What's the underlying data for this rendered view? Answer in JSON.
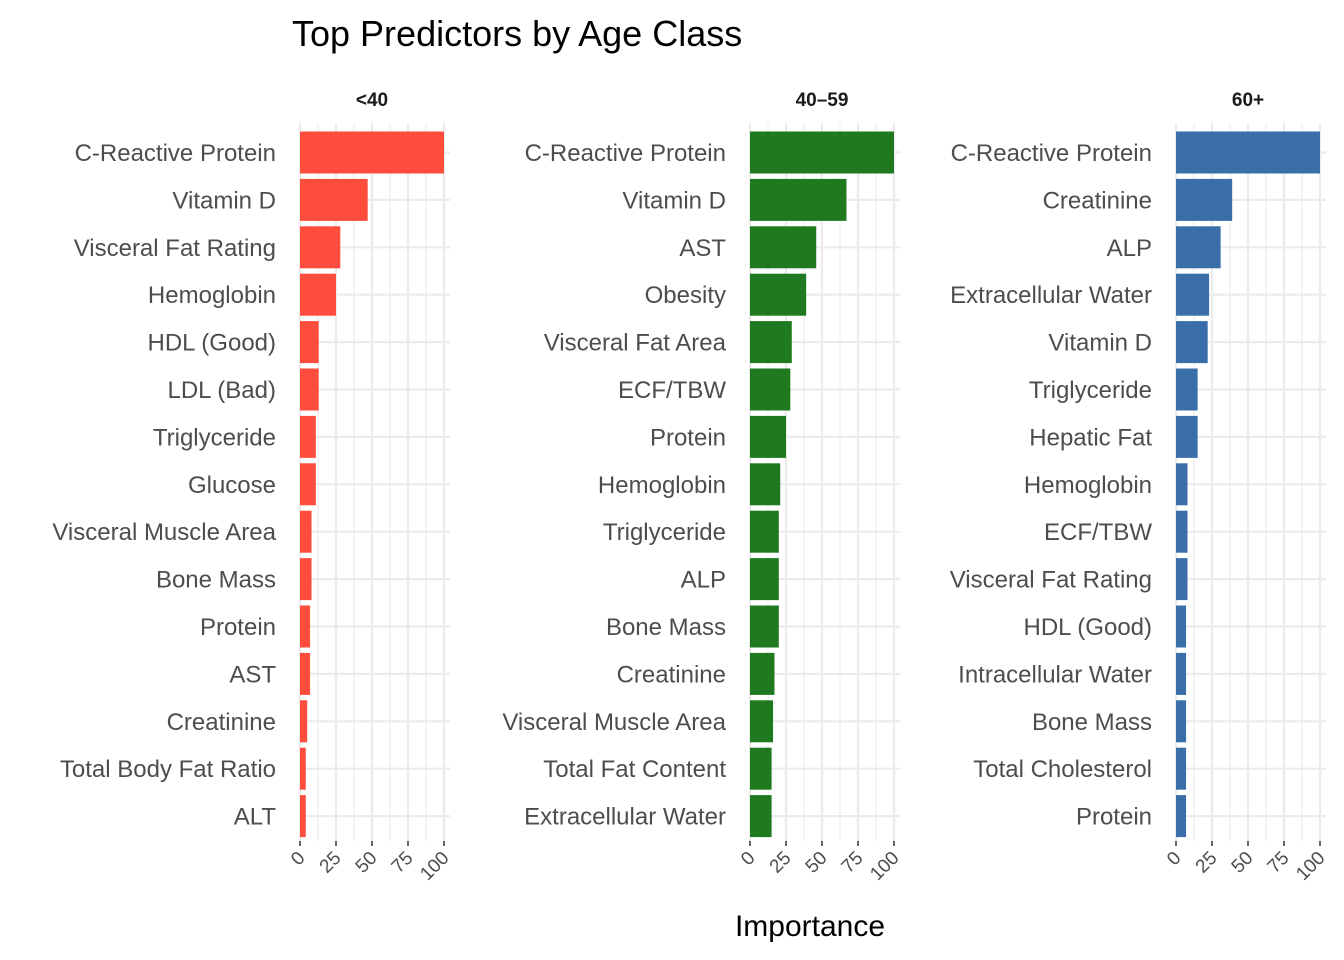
{
  "chart_data": {
    "type": "bar",
    "orientation": "horizontal",
    "title": "Top Predictors by Age Class",
    "xlabel": "Importance",
    "ylabel": "",
    "xlim": [
      0,
      100
    ],
    "xticks": [
      "0",
      "25",
      "50",
      "75",
      "100"
    ],
    "grid": true,
    "legend": "none",
    "facets": [
      {
        "label": "<40",
        "color": "#FF4D3D",
        "categories": [
          "C-Reactive Protein",
          "Vitamin D",
          "Visceral Fat Rating",
          "Hemoglobin",
          "HDL (Good)",
          "LDL (Bad)",
          "Triglyceride",
          "Glucose",
          "Visceral Muscle Area",
          "Bone Mass",
          "Protein",
          "AST",
          "Creatinine",
          "Total Body Fat Ratio",
          "ALT"
        ],
        "values": [
          100,
          47,
          28,
          25,
          13,
          13,
          11,
          11,
          8,
          8,
          7,
          7,
          5,
          4,
          4
        ]
      },
      {
        "label": "40–59",
        "color": "#1F7A1F",
        "categories": [
          "C-Reactive Protein",
          "Vitamin D",
          "AST",
          "Obesity",
          "Visceral Fat Area",
          "ECF/TBW",
          "Protein",
          "Hemoglobin",
          "Triglyceride",
          "ALP",
          "Bone Mass",
          "Creatinine",
          "Visceral Muscle Area",
          "Total Fat Content",
          "Extracellular Water"
        ],
        "values": [
          100,
          67,
          46,
          39,
          29,
          28,
          25,
          21,
          20,
          20,
          20,
          17,
          16,
          15,
          15
        ]
      },
      {
        "label": "60+",
        "color": "#3A6EA8",
        "categories": [
          "C-Reactive Protein",
          "Creatinine",
          "ALP",
          "Extracellular Water",
          "Vitamin D",
          "Triglyceride",
          "Hepatic Fat",
          "Hemoglobin",
          "ECF/TBW",
          "Visceral Fat Rating",
          "HDL (Good)",
          "Intracellular Water",
          "Bone Mass",
          "Total Cholesterol",
          "Protein"
        ],
        "values": [
          100,
          39,
          31,
          23,
          22,
          15,
          15,
          8,
          8,
          8,
          7,
          7,
          7,
          7,
          7
        ]
      }
    ]
  }
}
